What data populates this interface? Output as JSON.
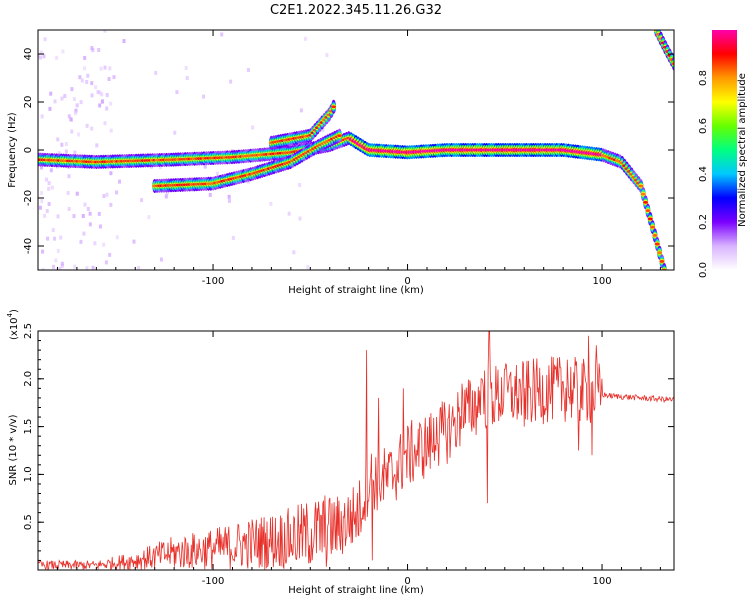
{
  "title": "C2E1.2022.345.11.26.G32",
  "chart_data": [
    {
      "type": "heatmap",
      "xlabel": "Height of straight line (km)",
      "ylabel": "Frequency (Hz)",
      "xlim": [
        -190,
        137
      ],
      "ylim": [
        -50,
        50
      ],
      "xticks": [
        -100,
        0,
        100
      ],
      "yticks": [
        -40,
        -20,
        0,
        20,
        40
      ],
      "colorbar": {
        "label": "Normalized spectral amplitude",
        "range": [
          0.0,
          1.0
        ],
        "ticks": [
          0.0,
          0.2,
          0.4,
          0.6,
          0.8
        ],
        "tick_labels": [
          "0.0",
          "0.2",
          "0.4",
          "0.6",
          "0.8"
        ],
        "colors": [
          "#ffffff",
          "#d9b3ff",
          "#7a00ff",
          "#0000ff",
          "#00c8ff",
          "#00ff80",
          "#66ff00",
          "#ffff00",
          "#ff9900",
          "#ff0000",
          "#ff00aa"
        ]
      },
      "ridges": [
        {
          "name": "main",
          "points": [
            [
              -190,
              -4
            ],
            [
              -160,
              -5
            ],
            [
              -120,
              -4
            ],
            [
              -90,
              -3
            ],
            [
              -60,
              -1
            ],
            [
              -40,
              2
            ],
            [
              -30,
              5
            ],
            [
              -20,
              0
            ],
            [
              0,
              -1
            ],
            [
              20,
              0
            ],
            [
              50,
              0
            ],
            [
              80,
              0
            ],
            [
              100,
              -2
            ],
            [
              110,
              -5
            ],
            [
              120,
              -15
            ],
            [
              127,
              -35
            ],
            [
              132,
              -50
            ]
          ]
        },
        {
          "name": "lower",
          "points": [
            [
              -130,
              -15
            ],
            [
              -100,
              -14
            ],
            [
              -80,
              -10
            ],
            [
              -60,
              -5
            ],
            [
              -45,
              2
            ],
            [
              -35,
              6
            ]
          ]
        },
        {
          "name": "upper",
          "points": [
            [
              -70,
              3
            ],
            [
              -50,
              6
            ],
            [
              -40,
              15
            ],
            [
              -38,
              18
            ]
          ]
        },
        {
          "name": "edge",
          "points": [
            [
              128,
              50
            ],
            [
              133,
              42
            ],
            [
              137,
              36
            ]
          ]
        }
      ]
    },
    {
      "type": "line",
      "xlabel": "Height of straight line (km)",
      "ylabel": "SNR (10 * v/v)",
      "yscale_label": "(x10",
      "yscale_exponent": "4",
      "xlim": [
        -190,
        137
      ],
      "ylim": [
        0,
        2.5
      ],
      "xticks": [
        -100,
        0,
        100
      ],
      "yticks": [
        0.5,
        1.0,
        1.5,
        2.0,
        2.5
      ],
      "ytick_labels": [
        "0.5",
        "1.0",
        "1.5",
        "2.0",
        "2.5"
      ],
      "color": "#e8302a",
      "trend": [
        [
          -190,
          0.05
        ],
        [
          -160,
          0.05
        ],
        [
          -140,
          0.1
        ],
        [
          -120,
          0.18
        ],
        [
          -100,
          0.22
        ],
        [
          -80,
          0.28
        ],
        [
          -60,
          0.33
        ],
        [
          -45,
          0.4
        ],
        [
          -35,
          0.45
        ],
        [
          -25,
          0.6
        ],
        [
          -20,
          0.95
        ],
        [
          -10,
          0.95
        ],
        [
          0,
          1.2
        ],
        [
          10,
          1.3
        ],
        [
          20,
          1.45
        ],
        [
          30,
          1.65
        ],
        [
          40,
          1.8
        ],
        [
          60,
          1.85
        ],
        [
          80,
          1.9
        ],
        [
          95,
          1.85
        ],
        [
          105,
          1.82
        ],
        [
          120,
          1.8
        ],
        [
          137,
          1.78
        ]
      ],
      "spikes": [
        [
          -21,
          2.3
        ],
        [
          -18,
          0.1
        ],
        [
          -15,
          1.8
        ],
        [
          -2,
          1.9
        ],
        [
          15,
          1.6
        ],
        [
          28,
          1.95
        ],
        [
          38,
          2.0
        ],
        [
          41,
          0.7
        ],
        [
          42,
          2.5
        ],
        [
          50,
          2.1
        ],
        [
          60,
          1.5
        ],
        [
          82,
          2.2
        ],
        [
          88,
          1.25
        ],
        [
          93,
          2.45
        ],
        [
          95,
          1.2
        ],
        [
          97,
          2.35
        ]
      ]
    }
  ]
}
